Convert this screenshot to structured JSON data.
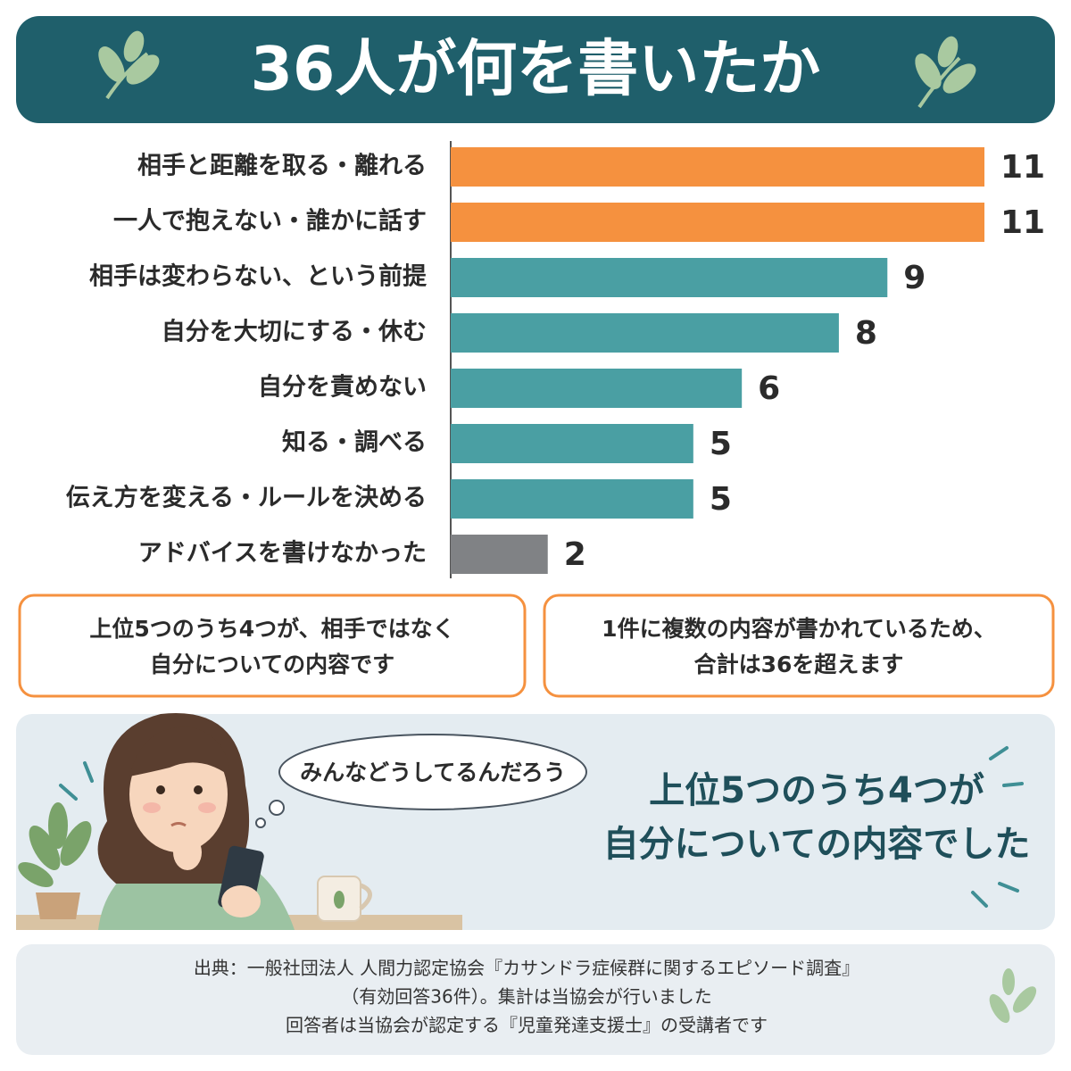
{
  "chart_data": {
    "type": "bar",
    "orientation": "horizontal",
    "title": "36人が何を書いたか",
    "categories": [
      "相手と距離を取る・離れる",
      "一人で抱えない・誰かに話す",
      "相手は変わらない、という前提",
      "自分を大切にする・休む",
      "自分を責めない",
      "知る・調べる",
      "伝え方を変える・ルールを決める",
      "アドバイスを書けなかった"
    ],
    "values": [
      11,
      11,
      9,
      8,
      6,
      5,
      5,
      2
    ],
    "colors": [
      "#f5913f",
      "#f5913f",
      "#4a9fa3",
      "#4a9fa3",
      "#4a9fa3",
      "#4a9fa3",
      "#4a9fa3",
      "#808285"
    ],
    "xlim": [
      0,
      11
    ]
  },
  "notes": [
    [
      "上位5つのうち4つが、相手ではなく",
      "自分についての内容です"
    ],
    [
      "1件に複数の内容が書かれているため、",
      "合計は36を超えます"
    ]
  ],
  "illustration": {
    "bubble": "みんなどうしてるんだろう",
    "message": [
      "上位5つのうち4つが",
      "自分についての内容でした"
    ]
  },
  "source": [
    "出典：一般社団法人 人間力認定協会『カサンドラ症候群に関するエピソード調査』",
    "（有効回答36件）。集計は当協会が行いました",
    "回答者は当協会が認定する『児童発達支援士』の受講者です"
  ]
}
